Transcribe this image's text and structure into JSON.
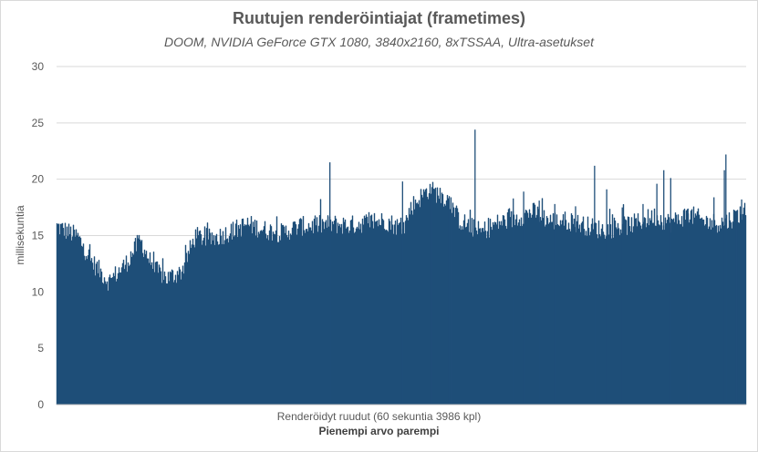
{
  "chart_data": {
    "type": "area",
    "title": "Ruutujen renderöintiajat  (frametimes)",
    "subtitle": "DOOM, NVIDIA GeForce GTX 1080, 3840x2160, 8xTSSAA, Ultra-asetukset",
    "xlabel": "Renderöidyt ruudut (60 sekuntia 3986 kpl)",
    "ylabel": "millisekuntia",
    "note": "Pienempi arvo parempi",
    "ylim": [
      0,
      30
    ],
    "yticks": [
      "0",
      "5",
      "10",
      "15",
      "20",
      "25",
      "30"
    ],
    "grid": true,
    "color": "#1f4e79",
    "frame_count": 3986,
    "profile": [
      [
        0,
        15.5
      ],
      [
        120,
        14.6
      ],
      [
        200,
        12.4
      ],
      [
        300,
        10.6
      ],
      [
        400,
        12.2
      ],
      [
        480,
        14.3
      ],
      [
        560,
        11.7
      ],
      [
        640,
        10.9
      ],
      [
        720,
        11.5
      ],
      [
        800,
        14.6
      ],
      [
        900,
        14.4
      ],
      [
        1000,
        15.0
      ],
      [
        1100,
        15.7
      ],
      [
        1200,
        15.2
      ],
      [
        1300,
        14.9
      ],
      [
        1400,
        15.5
      ],
      [
        1500,
        15.6
      ],
      [
        1600,
        15.7
      ],
      [
        1700,
        15.6
      ],
      [
        1800,
        15.9
      ],
      [
        1900,
        16.0
      ],
      [
        2000,
        15.3
      ],
      [
        2050,
        17.3
      ],
      [
        2150,
        18.8
      ],
      [
        2250,
        18.0
      ],
      [
        2330,
        16.0
      ],
      [
        2450,
        15.0
      ],
      [
        2550,
        15.8
      ],
      [
        2650,
        16.2
      ],
      [
        2750,
        16.8
      ],
      [
        2850,
        16.0
      ],
      [
        2950,
        16.0
      ],
      [
        3050,
        15.6
      ],
      [
        3150,
        15.2
      ],
      [
        3250,
        15.4
      ],
      [
        3350,
        15.8
      ],
      [
        3450,
        16.4
      ],
      [
        3550,
        15.8
      ],
      [
        3650,
        16.6
      ],
      [
        3750,
        15.9
      ],
      [
        3850,
        15.8
      ],
      [
        3900,
        16.2
      ],
      [
        3985,
        17.0
      ]
    ],
    "spikes": [
      [
        1580,
        21.5
      ],
      [
        2000,
        19.8
      ],
      [
        2170,
        19.3
      ],
      [
        2280,
        18.4
      ],
      [
        2270,
        18.5
      ],
      [
        2419,
        24.4
      ],
      [
        2640,
        18.3
      ],
      [
        2700,
        18.9
      ],
      [
        2790,
        18.1
      ],
      [
        2880,
        17.8
      ],
      [
        3000,
        17.6
      ],
      [
        3110,
        21.2
      ],
      [
        3180,
        19.1
      ],
      [
        3270,
        17.5
      ],
      [
        3390,
        17.8
      ],
      [
        3470,
        19.6
      ],
      [
        3510,
        20.8
      ],
      [
        3550,
        20.1
      ],
      [
        3650,
        17.4
      ],
      [
        3800,
        18.4
      ],
      [
        3860,
        20.8
      ],
      [
        3869,
        22.2
      ],
      [
        3930,
        17.2
      ],
      [
        3960,
        18.2
      ]
    ]
  }
}
